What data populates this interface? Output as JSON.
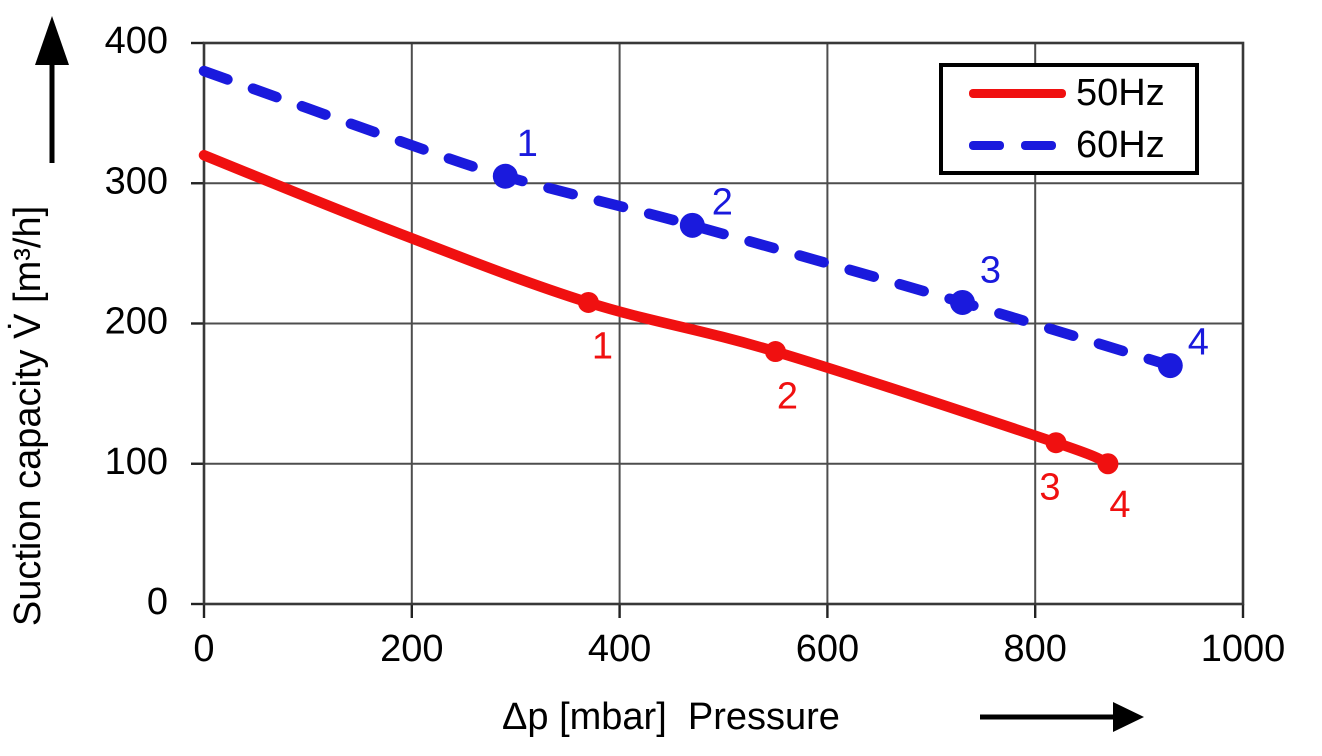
{
  "chart_data": {
    "type": "line",
    "title": "",
    "xlabel": "Δp [mbar]  Pressure",
    "ylabel": "Suction capacity V̇ [m³/h]",
    "xlim": [
      0,
      1000
    ],
    "ylim": [
      0,
      400
    ],
    "xticks": [
      0,
      200,
      400,
      600,
      800,
      1000
    ],
    "yticks": [
      0,
      100,
      200,
      300,
      400
    ],
    "grid": true,
    "axis_arrows": {
      "x": "right",
      "y": "up"
    },
    "legend": {
      "position": "top-right",
      "entries": [
        "50Hz",
        "60Hz"
      ]
    },
    "colors": {
      "series_50hz": "#f01010",
      "series_60hz": "#1a1add",
      "grid": "#4d4d4d",
      "axis": "#383838",
      "text": "#000000",
      "background": "#ffffff"
    },
    "series": [
      {
        "name": "50Hz",
        "color": "#f01010",
        "line_style": "solid",
        "curve": [
          [
            0,
            320
          ],
          [
            185,
            265
          ],
          [
            370,
            215
          ],
          [
            550,
            180
          ],
          [
            820,
            115
          ],
          [
            870,
            100
          ]
        ],
        "points": [
          {
            "label": "1",
            "x": 370,
            "y": 215,
            "dx": 14,
            "dy": 43
          },
          {
            "label": "2",
            "x": 550,
            "y": 180,
            "dx": 12,
            "dy": 44
          },
          {
            "label": "3",
            "x": 820,
            "y": 115,
            "dx": -6,
            "dy": 44
          },
          {
            "label": "4",
            "x": 870,
            "y": 100,
            "dx": 12,
            "dy": 40
          }
        ]
      },
      {
        "name": "60Hz",
        "color": "#1a1add",
        "line_style": "dashed",
        "curve": [
          [
            0,
            380
          ],
          [
            185,
            331
          ],
          [
            290,
            305
          ],
          [
            470,
            270
          ],
          [
            730,
            215
          ],
          [
            930,
            170
          ]
        ],
        "points": [
          {
            "label": "1",
            "x": 290,
            "y": 305,
            "dx": 22,
            "dy": -33
          },
          {
            "label": "2",
            "x": 470,
            "y": 270,
            "dx": 30,
            "dy": -24
          },
          {
            "label": "3",
            "x": 730,
            "y": 215,
            "dx": 28,
            "dy": -33
          },
          {
            "label": "4",
            "x": 930,
            "y": 170,
            "dx": 28,
            "dy": -24
          }
        ]
      }
    ]
  }
}
